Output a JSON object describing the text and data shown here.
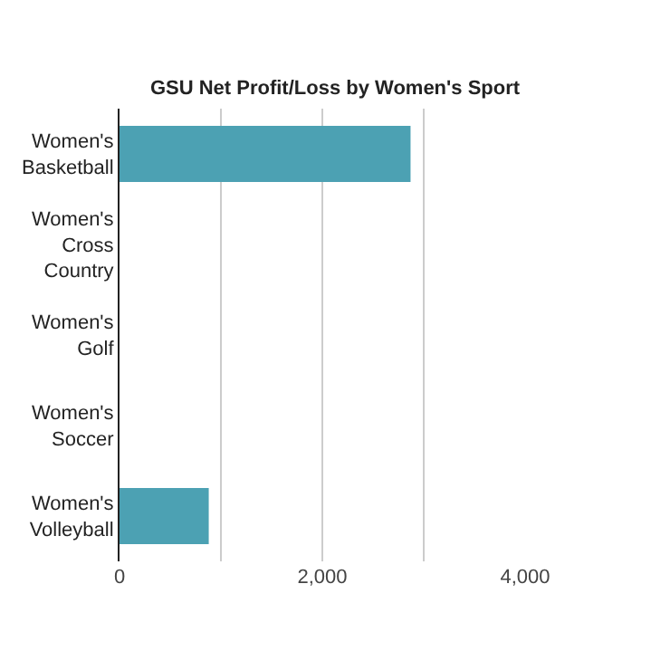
{
  "chart_data": {
    "type": "bar",
    "orientation": "horizontal",
    "title": "GSU Net Profit/Loss by Women's Sport",
    "categories": [
      "Women's Basketball",
      "Women's Cross Country",
      "Women's Golf",
      "Women's Soccer",
      "Women's Volleyball"
    ],
    "values": [
      2870,
      null,
      null,
      null,
      880
    ],
    "color": "#4ca1b3",
    "xlim": [
      0,
      4000
    ],
    "xticks": [
      0,
      {
        "value": 1000,
        "label": null
      },
      {
        "value": 2000,
        "label": "2,000"
      },
      {
        "value": 3000,
        "label": null
      },
      {
        "value": 4000,
        "label": "4,000"
      }
    ],
    "grid": "x"
  }
}
